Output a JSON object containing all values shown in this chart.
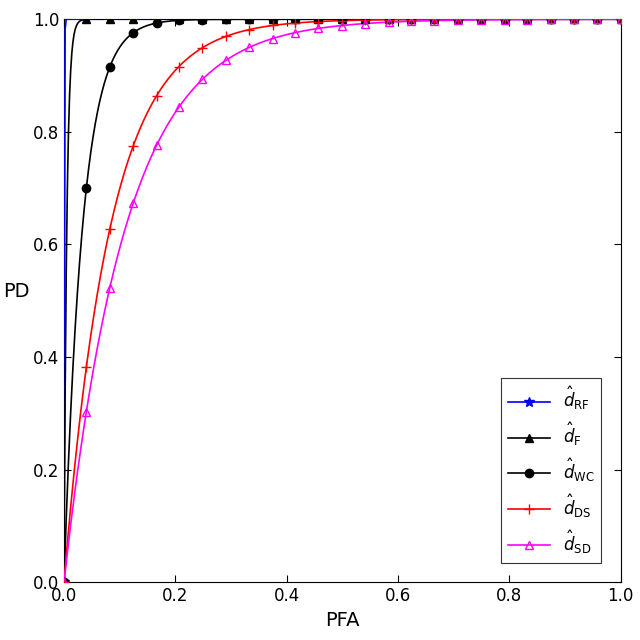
{
  "title": "",
  "xlabel": "PFA",
  "ylabel": "PD",
  "xlim": [
    0,
    1
  ],
  "ylim": [
    0,
    1
  ],
  "xticks": [
    0,
    0.2,
    0.4,
    0.6,
    0.8,
    1
  ],
  "yticks": [
    0,
    0.2,
    0.4,
    0.6,
    0.8,
    1
  ],
  "background_color": "#ffffff",
  "figsize": [
    6.4,
    6.4
  ],
  "dpi": 100,
  "curves": {
    "RF": {
      "color": "blue",
      "marker": "*",
      "markersize": 7,
      "k": 2000,
      "label": "$\\hat{d}_{\\rm RF}$"
    },
    "F": {
      "color": "black",
      "marker": "^",
      "markersize": 6,
      "k": 200,
      "label": "$\\hat{d}_{\\rm F}$"
    },
    "WC": {
      "color": "black",
      "marker": "o",
      "markersize": 6,
      "k": 30,
      "label": "$\\hat{d}_{\\rm WC}$"
    },
    "DS": {
      "color": "red",
      "marker": "+",
      "markersize": 7,
      "k": 12,
      "label": "$\\hat{d}_{\\rm DS}$"
    },
    "SD": {
      "color": "magenta",
      "marker": "^",
      "markersize": 6,
      "k": 9,
      "label": "$\\hat{d}_{\\rm SD}$"
    }
  },
  "n_points": 500,
  "n_markers": 25,
  "legend_loc": "lower right",
  "legend_fontsize": 12,
  "axis_fontsize": 14,
  "tick_fontsize": 12
}
